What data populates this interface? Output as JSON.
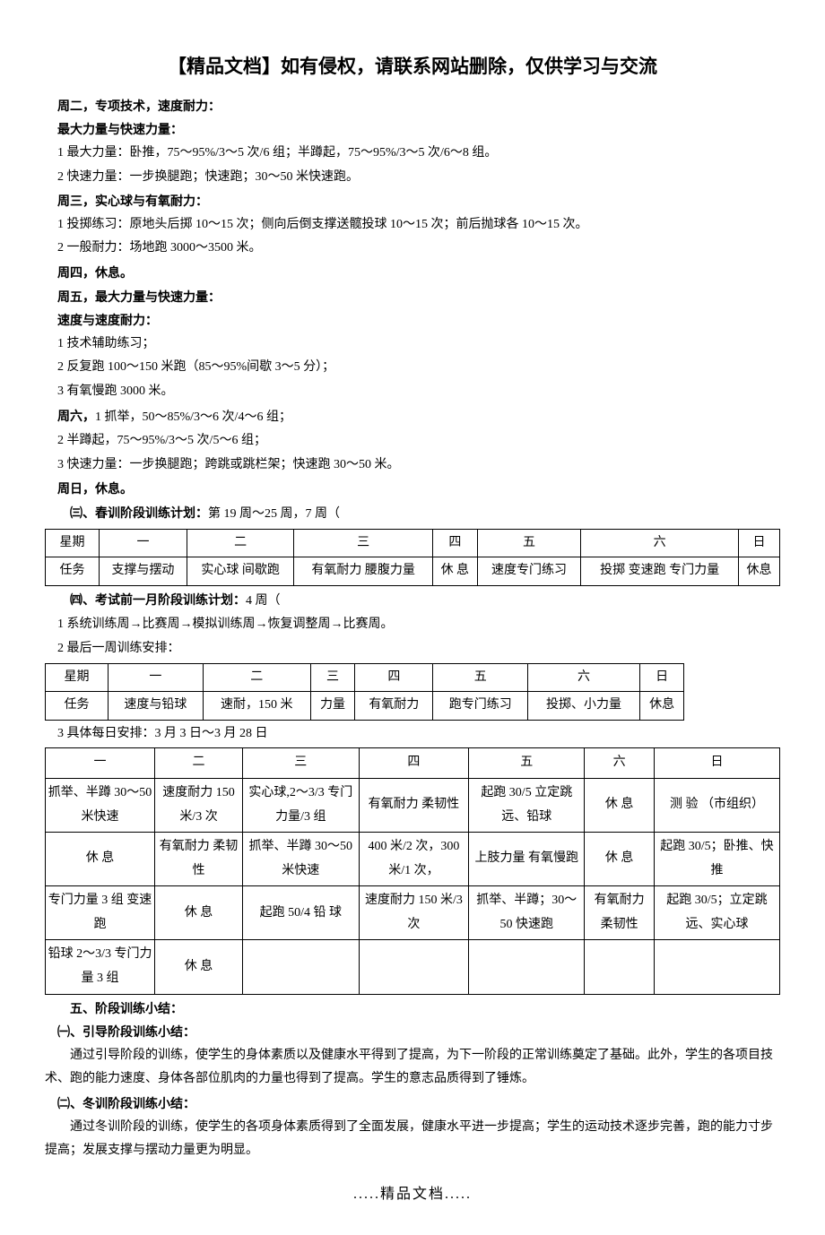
{
  "headerTitle": "【精品文档】如有侵权，请联系网站删除，仅供学习与交流",
  "section1": {
    "title": "周二，专项技术，速度耐力：",
    "sub1": "最大力量与快速力量：",
    "line1": "1 最大力量：卧推，75～95%/3～5 次/6 组；半蹲起，75～95%/3～5 次/6～8 组。",
    "line2": "2 快速力量：一步换腿跑；快速跑；30～50 米快速跑。"
  },
  "section2": {
    "title": "周三，实心球与有氧耐力：",
    "line1": "1 投掷练习：原地头后掷 10～15 次；侧向后倒支撑送髋投球 10～15 次；前后抛球各 10～15 次。",
    "line2": "2 一般耐力：场地跑 3000～3500 米。"
  },
  "section3": {
    "title": "周四，休息。"
  },
  "section4": {
    "title": "周五，最大力量与快速力量：",
    "sub1": "速度与速度耐力：",
    "line1": "1 技术辅助练习；",
    "line2": "2 反复跑 100～150 米跑（85～95%间歇 3～5 分）；",
    "line3": "3 有氧慢跑 3000 米。"
  },
  "section5": {
    "title": "周六，",
    "titleCont": "1 抓举，50～85%/3～6 次/4～6 组；",
    "line1": "2 半蹲起，75～95%/3～5 次/5～6 组；",
    "line2": "3 快速力量：一步换腿跑；跨跳或跳栏架；快速跑 30～50 米。"
  },
  "section6": {
    "title": "周日，休息。"
  },
  "section7": {
    "title": "㈢、春训阶段训练计划：",
    "subtitle": "第 19 周～25 周，7 周（"
  },
  "table1": {
    "headers": [
      "星期",
      "一",
      "二",
      "三",
      "四",
      "五",
      "六",
      "日"
    ],
    "row1": [
      "任务",
      "支撑与摆动",
      "实心球 间歇跑",
      "有氧耐力 腰腹力量",
      "休 息",
      "速度专门练习",
      "投掷 变速跑 专门力量",
      "休息"
    ]
  },
  "section8": {
    "title": "㈣、考试前一月阶段训练计划：",
    "subtitle": "4 周（",
    "line1": "1 系统训练周→比赛周→模拟训练周→恢复调整周→比赛周。",
    "line2": "2 最后一周训练安排："
  },
  "table2": {
    "headers": [
      "星期",
      "一",
      "二",
      "三",
      "四",
      "五",
      "六",
      "日"
    ],
    "row1": [
      "任务",
      "速度与铅球",
      "速耐，150 米",
      "力量",
      "有氧耐力",
      "跑专门练习",
      "投掷、小力量",
      "休息"
    ]
  },
  "section9": {
    "line1": "3 具体每日安排：3 月 3 日～3 月 28 日"
  },
  "table3": {
    "headers": [
      "一",
      "二",
      "三",
      "四",
      "五",
      "六",
      "日"
    ],
    "rows": [
      [
        "抓举、半蹲 30～50 米快速",
        "速度耐力 150 米/3 次",
        "实心球,2～3/3 专门力量/3 组",
        "有氧耐力 柔韧性",
        "起跑 30/5 立定跳远、铅球",
        "休 息",
        "测 验 （市组织）"
      ],
      [
        "休 息",
        "有氧耐力 柔韧性",
        "抓举、半蹲 30～50 米快速",
        "400 米/2 次，300 米/1 次，",
        "上肢力量 有氧慢跑",
        "休 息",
        "起跑 30/5；卧推、快推"
      ],
      [
        "专门力量 3 组 变速跑",
        "休 息",
        "起跑 50/4 铅 球",
        "速度耐力 150 米/3 次",
        "抓举、半蹲；30～50 快速跑",
        "有氧耐力 柔韧性",
        "起跑 30/5；立定跳远、实心球"
      ],
      [
        "铅球 2～3/3 专门力量 3 组",
        "休 息",
        "",
        "",
        "",
        "",
        ""
      ]
    ]
  },
  "section10": {
    "title": "五、阶段训练小结：",
    "sub1Title": "㈠、引导阶段训练小结：",
    "sub1Text": "通过引导阶段的训练，使学生的身体素质以及健康水平得到了提高，为下一阶段的正常训练奠定了基础。此外，学生的各项目技术、跑的能力速度、身体各部位肌肉的力量也得到了提高。学生的意志品质得到了锤炼。",
    "sub2Title": "㈡、冬训阶段训练小结：",
    "sub2Text": "通过冬训阶段的训练，使学生的各项身体素质得到了全面发展，健康水平进一步提高；学生的运动技术逐步完善，跑的能力寸步提高；发展支撑与摆动力量更为明显。"
  },
  "footer": ".....精品文档....."
}
